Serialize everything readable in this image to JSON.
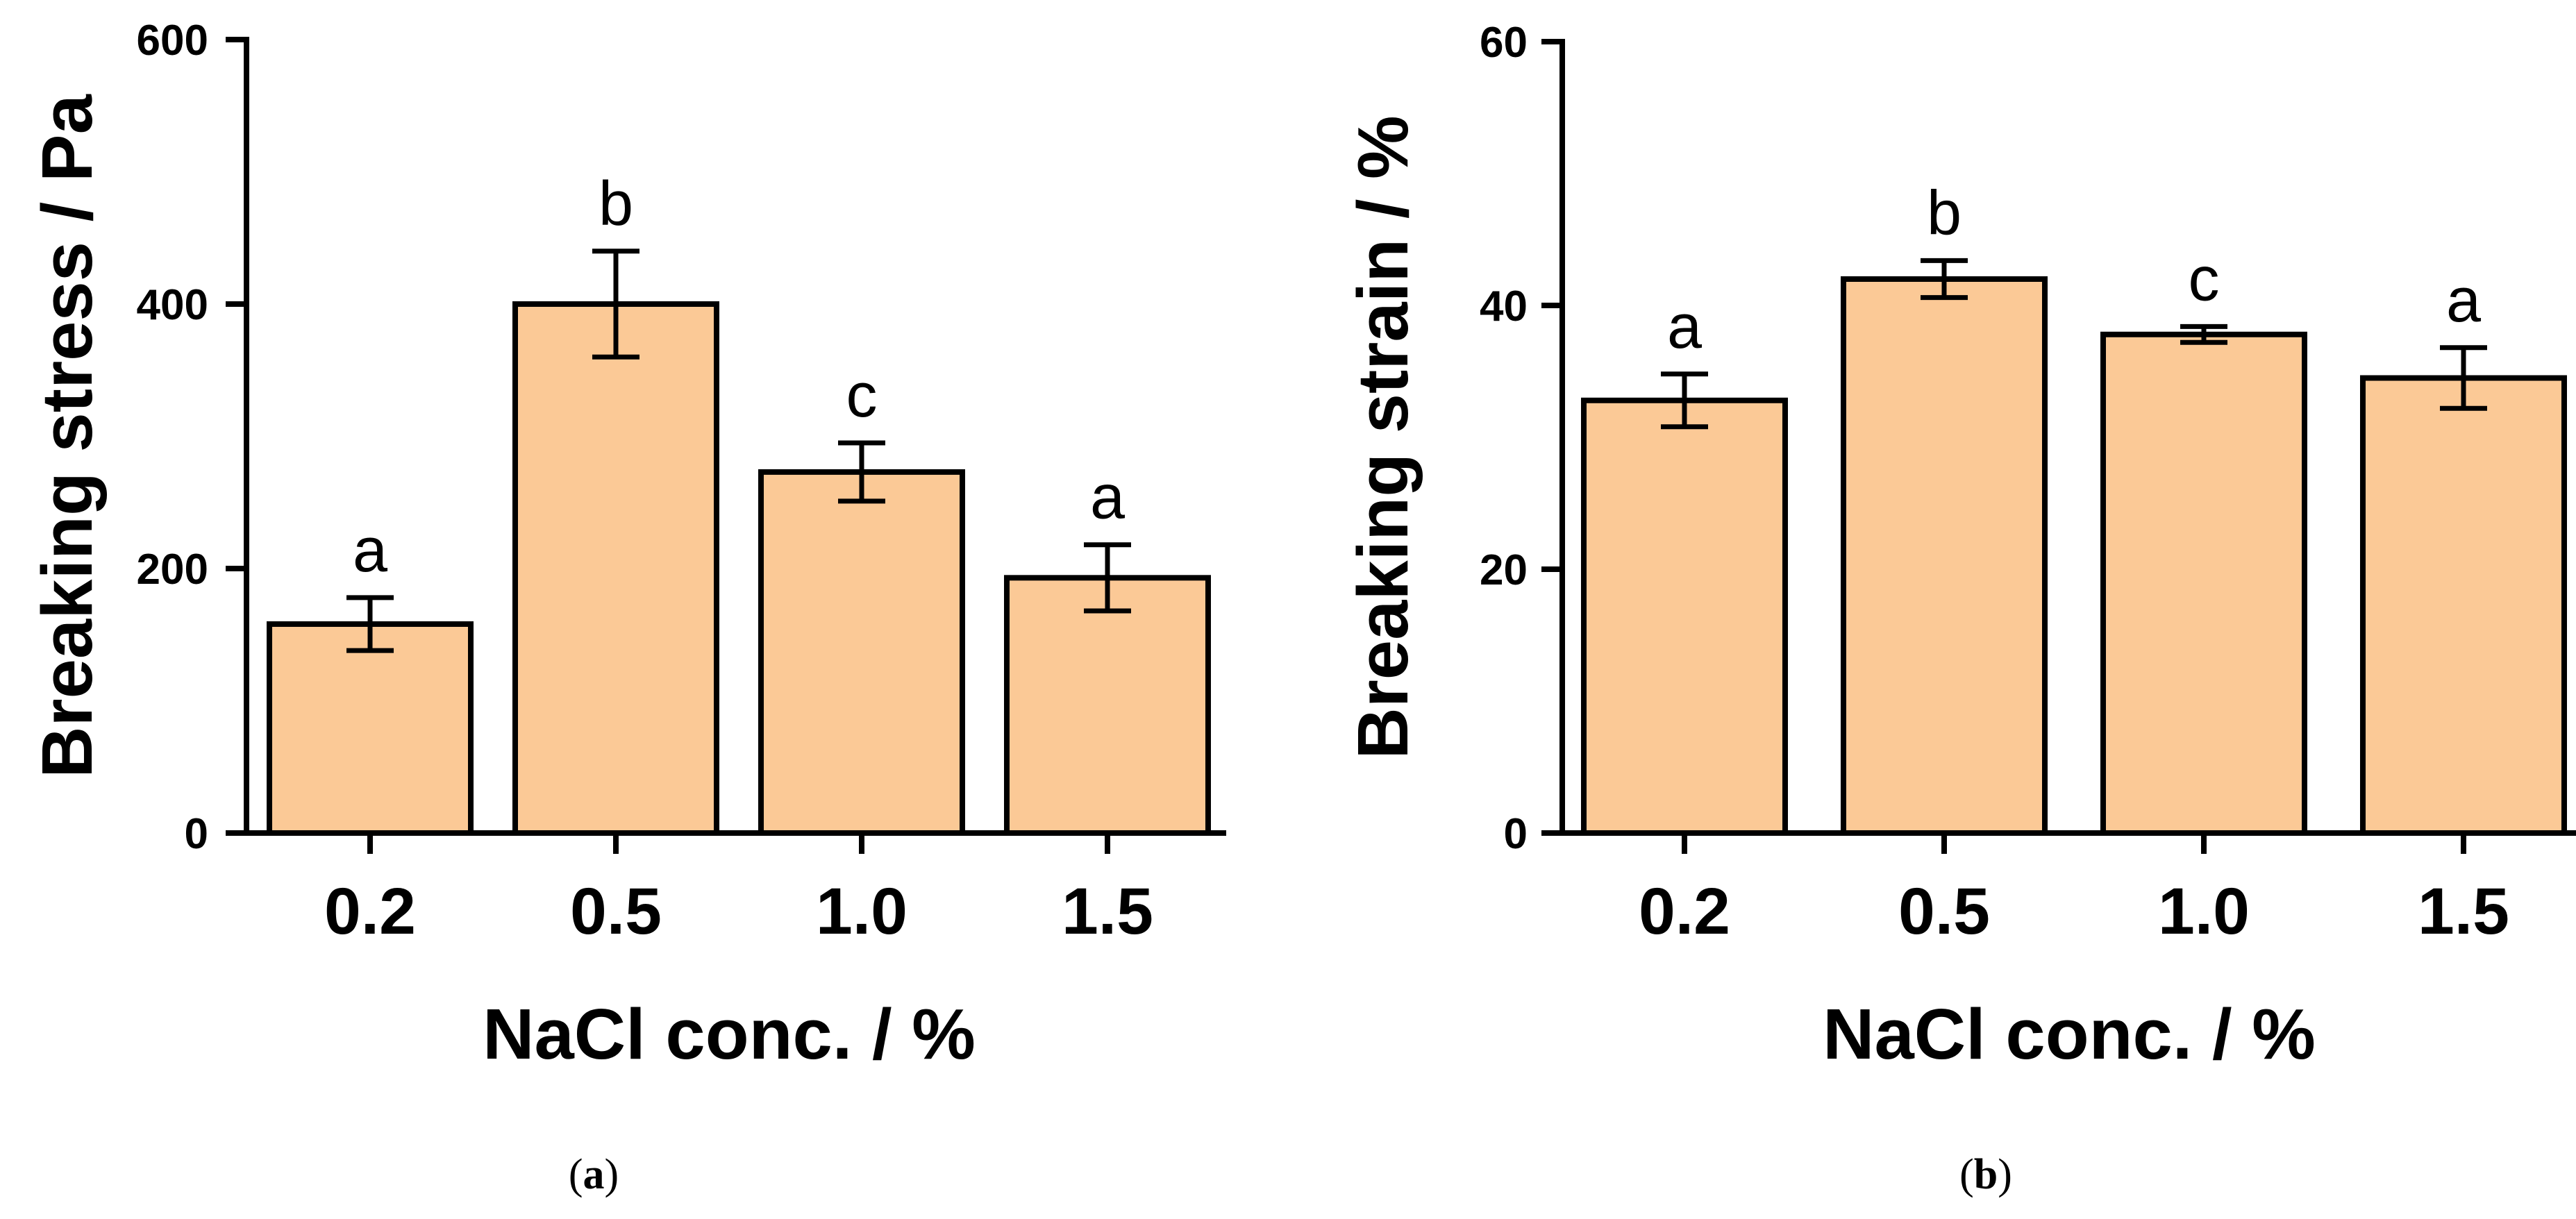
{
  "colors": {
    "bar_fill": "#FBC996",
    "stroke": "#000000"
  },
  "chart_data": [
    {
      "type": "bar",
      "panel_label": "a",
      "categories": [
        "0.2",
        "0.5",
        "1.0",
        "1.5"
      ],
      "values": [
        158,
        400,
        273,
        193
      ],
      "errors": [
        20,
        40,
        22,
        25
      ],
      "significance": [
        "a",
        "b",
        "c",
        "a"
      ],
      "ylim": [
        0,
        600
      ],
      "yticks": [
        0,
        200,
        400,
        600
      ],
      "ytick_labels": [
        "0",
        "200",
        "400",
        "600"
      ],
      "xlabel": "NaCl conc. / %",
      "ylabel": "Breaking stress / Pa",
      "title": ""
    },
    {
      "type": "bar",
      "panel_label": "b",
      "categories": [
        "0.2",
        "0.5",
        "1.0",
        "1.5"
      ],
      "values": [
        32.8,
        42.0,
        37.8,
        34.5
      ],
      "errors": [
        2.0,
        1.4,
        0.6,
        2.3
      ],
      "significance": [
        "a",
        "b",
        "c",
        "a"
      ],
      "ylim": [
        0,
        60
      ],
      "yticks": [
        0,
        20,
        40,
        60
      ],
      "ytick_labels": [
        "0",
        "20",
        "40",
        "60"
      ],
      "xlabel": "NaCl conc. / %",
      "ylabel": "Breaking strain / %",
      "title": ""
    }
  ]
}
